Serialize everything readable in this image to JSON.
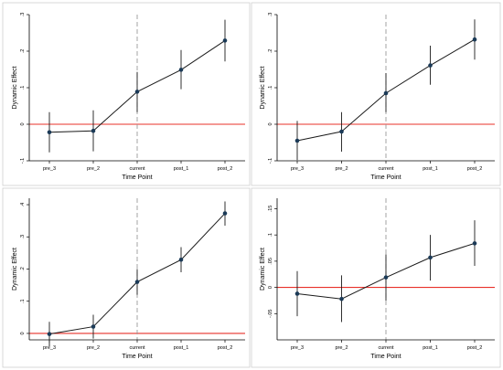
{
  "chart_data": [
    {
      "type": "line",
      "xlabel": "Time Point",
      "ylabel": "Dynamic Effect",
      "categories": [
        "pre_3",
        "pre_2",
        "current",
        "post_1",
        "post_2"
      ],
      "ylim": [
        -0.1,
        0.3
      ],
      "yticks": [
        -0.1,
        0,
        0.1,
        0.2,
        0.3
      ],
      "ytick_labels": [
        "-.1",
        "0",
        ".1",
        ".2",
        ".3"
      ],
      "reference_x": "current",
      "reference_y": 0,
      "values": [
        -0.022,
        -0.018,
        0.089,
        0.149,
        0.229
      ],
      "ci_low": [
        -0.077,
        -0.074,
        0.033,
        0.096,
        0.172
      ],
      "ci_high": [
        0.033,
        0.038,
        0.143,
        0.203,
        0.286
      ]
    },
    {
      "type": "line",
      "xlabel": "Time Point",
      "ylabel": "Dynamic Effect",
      "categories": [
        "pre_3",
        "pre_2",
        "current",
        "post_1",
        "post_2"
      ],
      "ylim": [
        -0.1,
        0.3
      ],
      "yticks": [
        -0.1,
        0,
        0.1,
        0.2,
        0.3
      ],
      "ytick_labels": [
        "-.1",
        "0",
        ".1",
        ".2",
        ".3"
      ],
      "reference_x": "current",
      "reference_y": 0,
      "values": [
        -0.045,
        -0.02,
        0.085,
        0.161,
        0.232
      ],
      "ci_low": [
        -0.098,
        -0.075,
        0.033,
        0.108,
        0.177
      ],
      "ci_high": [
        0.009,
        0.033,
        0.14,
        0.215,
        0.287
      ]
    },
    {
      "type": "line",
      "xlabel": "Time Point",
      "ylabel": "Dynamic Effect",
      "categories": [
        "pre_3",
        "pre_2",
        "current",
        "post_1",
        "post_2"
      ],
      "ylim": [
        -0.02,
        0.42
      ],
      "yticks": [
        0,
        0.1,
        0.2,
        0.3,
        0.4
      ],
      "ytick_labels": [
        "0",
        ".1",
        ".2",
        ".3",
        ".4"
      ],
      "reference_x": "current",
      "reference_y": 0,
      "values": [
        -0.002,
        0.021,
        0.16,
        0.229,
        0.373
      ],
      "ci_low": [
        -0.04,
        -0.016,
        0.12,
        0.19,
        0.335
      ],
      "ci_high": [
        0.036,
        0.058,
        0.2,
        0.268,
        0.41
      ]
    },
    {
      "type": "line",
      "xlabel": "Time Point",
      "ylabel": "Dynamic Effect",
      "categories": [
        "pre_3",
        "pre_2",
        "current",
        "post_1",
        "post_2"
      ],
      "ylim": [
        -0.1,
        0.17
      ],
      "yticks": [
        -0.05,
        0,
        0.05,
        0.1,
        0.15
      ],
      "ytick_labels": [
        "-.05",
        "0",
        ".05",
        ".1",
        ".15"
      ],
      "reference_x": "current",
      "reference_y": 0,
      "values": [
        -0.012,
        -0.022,
        0.019,
        0.057,
        0.084
      ],
      "ci_low": [
        -0.055,
        -0.066,
        -0.025,
        0.013,
        0.041
      ],
      "ci_high": [
        0.031,
        0.023,
        0.063,
        0.1,
        0.128
      ]
    }
  ]
}
